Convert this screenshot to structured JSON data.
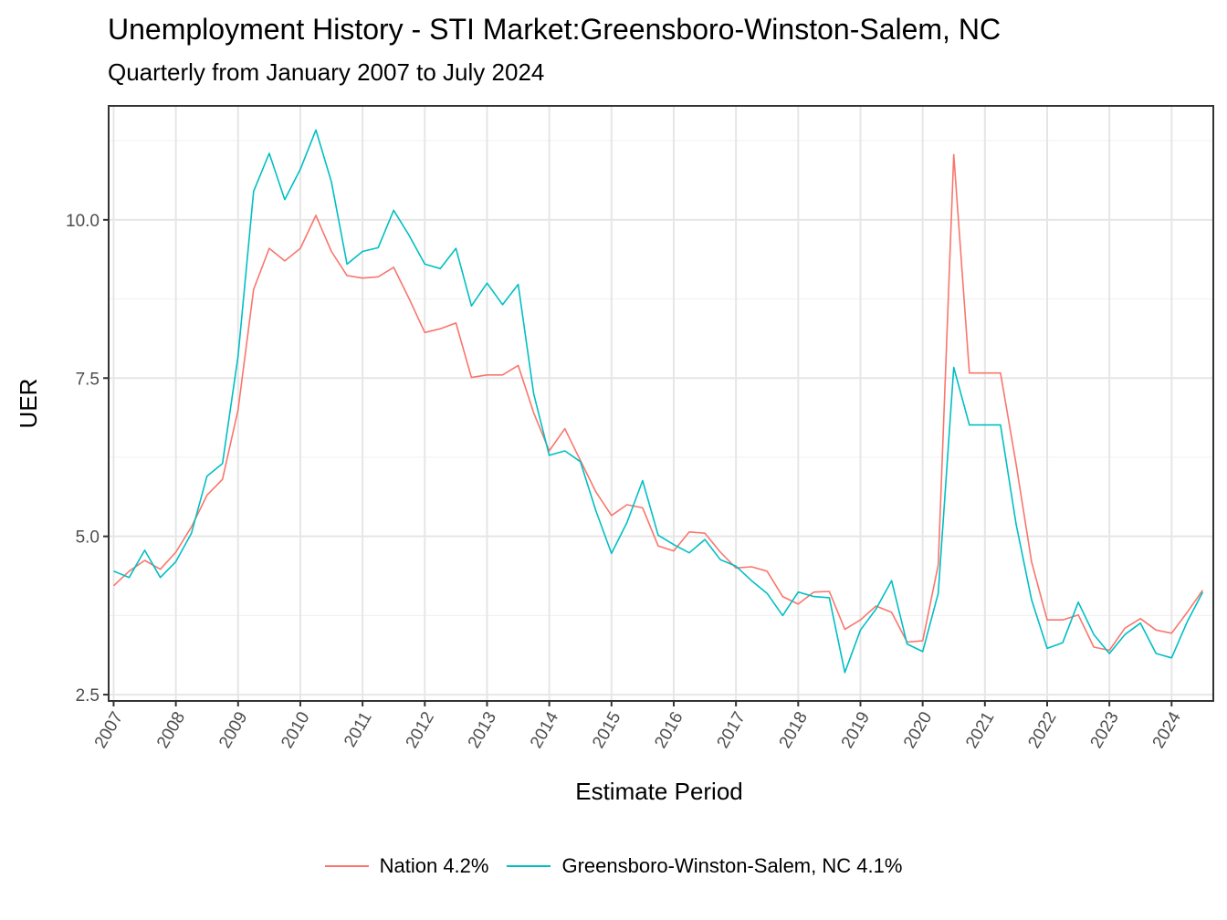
{
  "chart_data": {
    "type": "line",
    "title": "Unemployment History - STI Market:Greensboro-Winston-Salem, NC",
    "subtitle": "Quarterly from January 2007 to July 2024",
    "xlabel": "Estimate Period",
    "ylabel": "UER",
    "x_ticks": [
      "2007",
      "2008",
      "2009",
      "2010",
      "2011",
      "2012",
      "2013",
      "2014",
      "2015",
      "2016",
      "2017",
      "2018",
      "2019",
      "2020",
      "2021",
      "2022",
      "2023",
      "2024"
    ],
    "y_ticks": [
      "2.5",
      "5.0",
      "7.5",
      "10.0"
    ],
    "xlim": [
      2006.92,
      2024.67
    ],
    "ylim": [
      2.4,
      11.8
    ],
    "grid": true,
    "legend_position": "bottom",
    "x": [
      2007.0,
      2007.25,
      2007.5,
      2007.75,
      2008.0,
      2008.25,
      2008.5,
      2008.75,
      2009.0,
      2009.25,
      2009.5,
      2009.75,
      2010.0,
      2010.25,
      2010.5,
      2010.75,
      2011.0,
      2011.25,
      2011.5,
      2011.75,
      2012.0,
      2012.25,
      2012.5,
      2012.75,
      2013.0,
      2013.25,
      2013.5,
      2013.75,
      2014.0,
      2014.25,
      2014.5,
      2014.75,
      2015.0,
      2015.25,
      2015.5,
      2015.75,
      2016.0,
      2016.25,
      2016.5,
      2016.75,
      2017.0,
      2017.25,
      2017.5,
      2017.75,
      2018.0,
      2018.25,
      2018.5,
      2018.75,
      2019.0,
      2019.25,
      2019.5,
      2019.75,
      2020.0,
      2020.25,
      2020.5,
      2020.75,
      2021.0,
      2021.25,
      2021.5,
      2021.75,
      2022.0,
      2022.25,
      2022.5,
      2022.75,
      2023.0,
      2023.25,
      2023.5,
      2023.75,
      2024.0,
      2024.25,
      2024.5
    ],
    "series": [
      {
        "name": "Nation 4.2%",
        "color": "#F8766D",
        "values": [
          4.22,
          4.45,
          4.62,
          4.48,
          4.75,
          5.15,
          5.65,
          5.9,
          7.0,
          8.9,
          9.55,
          9.35,
          9.55,
          10.07,
          9.5,
          9.12,
          9.08,
          9.1,
          9.25,
          8.75,
          8.22,
          8.28,
          8.37,
          7.51,
          7.55,
          7.55,
          7.7,
          6.95,
          6.35,
          6.7,
          6.2,
          5.7,
          5.33,
          5.5,
          5.45,
          4.85,
          4.77,
          5.07,
          5.05,
          4.75,
          4.5,
          4.52,
          4.45,
          4.05,
          3.93,
          4.12,
          4.13,
          3.53,
          3.68,
          3.9,
          3.8,
          3.33,
          3.35,
          4.55,
          11.03,
          7.58,
          7.58,
          7.58,
          6.15,
          4.6,
          3.68,
          3.68,
          3.76,
          3.25,
          3.2,
          3.55,
          3.7,
          3.52,
          3.47,
          3.8,
          4.15
        ]
      },
      {
        "name": "Greensboro-Winston-Salem, NC 4.1%",
        "color": "#00BFC4",
        "values": [
          4.45,
          4.35,
          4.78,
          4.35,
          4.6,
          5.05,
          5.95,
          6.15,
          7.85,
          10.45,
          11.05,
          10.32,
          10.8,
          11.42,
          10.6,
          9.3,
          9.5,
          9.56,
          10.15,
          9.75,
          9.3,
          9.23,
          9.55,
          8.64,
          9.0,
          8.66,
          8.98,
          7.25,
          6.28,
          6.35,
          6.18,
          5.4,
          4.73,
          5.22,
          5.88,
          5.02,
          4.87,
          4.74,
          4.95,
          4.63,
          4.53,
          4.3,
          4.1,
          3.75,
          4.12,
          4.05,
          4.03,
          2.85,
          3.52,
          3.85,
          4.3,
          3.3,
          3.18,
          4.1,
          7.67,
          6.76,
          6.76,
          6.76,
          5.2,
          4.0,
          3.23,
          3.32,
          3.96,
          3.45,
          3.15,
          3.45,
          3.63,
          3.15,
          3.08,
          3.65,
          4.12
        ]
      }
    ]
  }
}
